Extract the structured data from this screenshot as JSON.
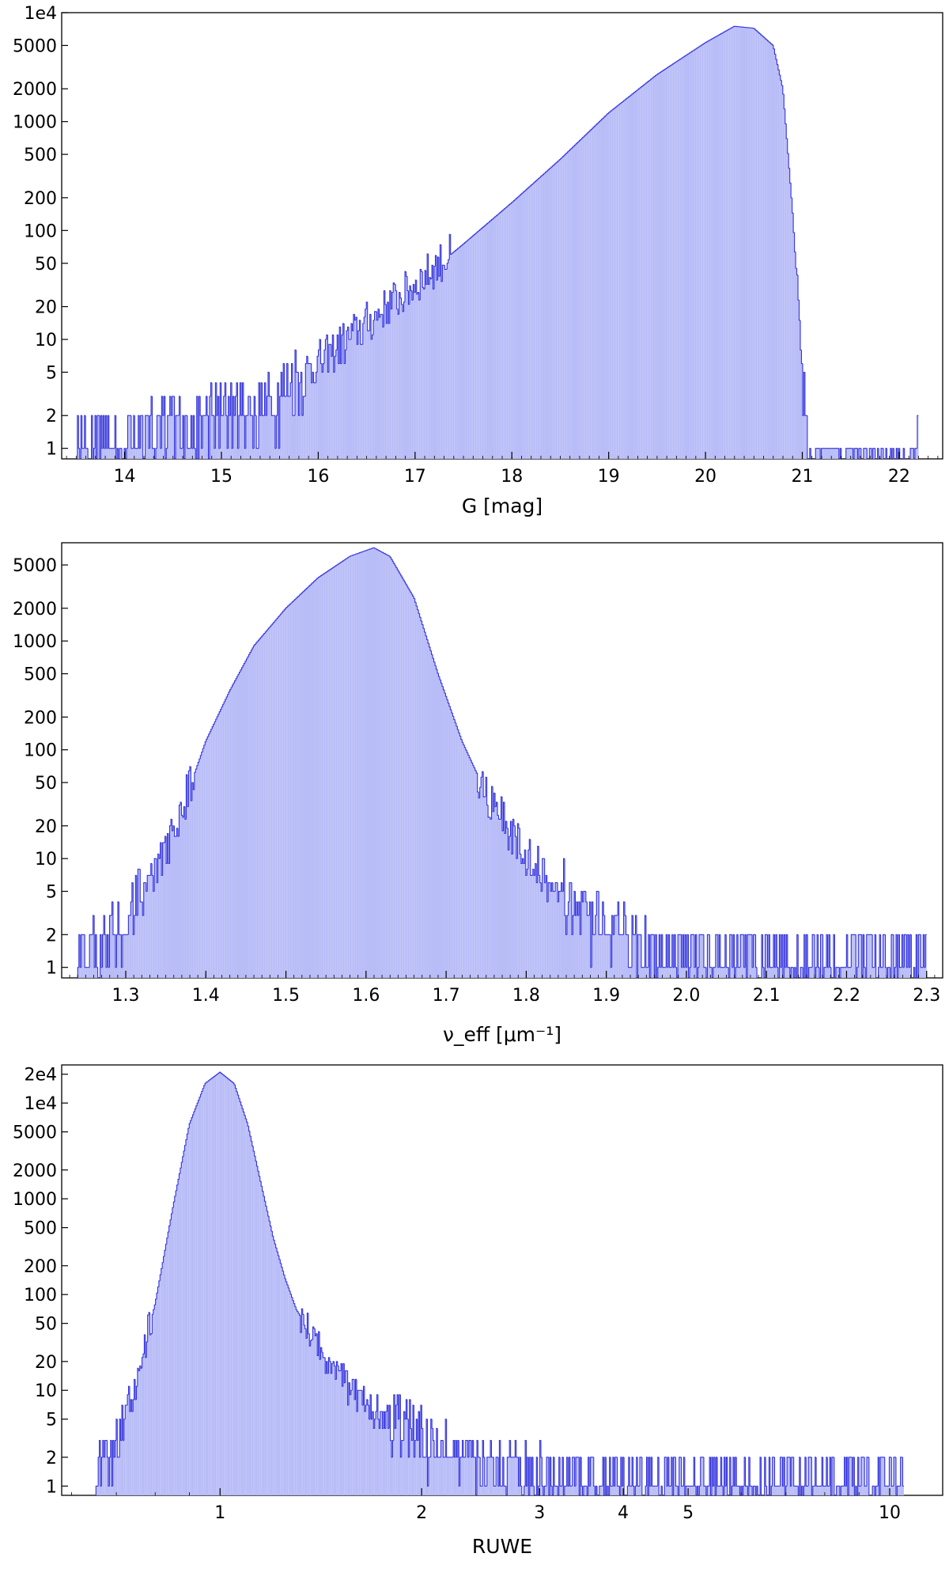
{
  "chart_data": [
    {
      "type": "histogram",
      "xlabel": "G [mag]",
      "ylabel": "",
      "xscale": "linear",
      "yscale": "log",
      "xlim": [
        13.35,
        22.45
      ],
      "ylim": [
        0.8,
        10000
      ],
      "xticks": [
        14,
        15,
        16,
        17,
        18,
        19,
        20,
        21,
        22
      ],
      "xtick_labels": [
        "14",
        "15",
        "16",
        "17",
        "18",
        "19",
        "20",
        "21",
        "22"
      ],
      "yticks": [
        1,
        2,
        5,
        10,
        20,
        50,
        100,
        200,
        500,
        1000,
        2000,
        5000,
        10000
      ],
      "ytick_labels": [
        "1",
        "2",
        "5",
        "10",
        "20",
        "50",
        "100",
        "200",
        "500",
        "1000",
        "2000",
        "5000",
        "1e4"
      ],
      "grid": false,
      "fill_color": "#b8bcf7",
      "edge_color": "#3333dd",
      "x": [
        13.5,
        14.0,
        14.5,
        15.0,
        15.5,
        15.7,
        16.0,
        16.5,
        17.0,
        17.5,
        18.0,
        18.5,
        19.0,
        19.5,
        20.0,
        20.3,
        20.5,
        20.7,
        20.8,
        20.9,
        21.0,
        21.05,
        21.1,
        22.2
      ],
      "y": [
        1,
        1,
        1.5,
        2,
        2.5,
        4,
        6,
        14,
        32,
        75,
        180,
        450,
        1200,
        2700,
        5300,
        7500,
        7200,
        5000,
        2000,
        150,
        5,
        1,
        0,
        1
      ]
    },
    {
      "type": "histogram",
      "xlabel": "ν_eff [μm⁻¹]",
      "ylabel": "",
      "xscale": "linear",
      "yscale": "log",
      "xlim": [
        1.22,
        2.32
      ],
      "ylim": [
        0.8,
        8000
      ],
      "xticks": [
        1.3,
        1.4,
        1.5,
        1.6,
        1.7,
        1.8,
        1.9,
        2.0,
        2.1,
        2.2,
        2.3
      ],
      "xtick_labels": [
        "1.3",
        "1.4",
        "1.5",
        "1.6",
        "1.7",
        "1.8",
        "1.9",
        "2.0",
        "2.1",
        "2.2",
        "2.3"
      ],
      "yticks": [
        1,
        2,
        5,
        10,
        20,
        50,
        100,
        200,
        500,
        1000,
        2000,
        5000
      ],
      "ytick_labels": [
        "1",
        "2",
        "5",
        "10",
        "20",
        "50",
        "100",
        "200",
        "500",
        "1000",
        "2000",
        "5000"
      ],
      "grid": false,
      "fill_color": "#b8bcf7",
      "edge_color": "#3333dd",
      "x": [
        1.24,
        1.26,
        1.29,
        1.32,
        1.35,
        1.38,
        1.4,
        1.43,
        1.46,
        1.5,
        1.54,
        1.58,
        1.61,
        1.63,
        1.66,
        1.69,
        1.72,
        1.75,
        1.79,
        1.83,
        1.87,
        1.92,
        1.97,
        2.03,
        2.1,
        2.3
      ],
      "y": [
        1,
        1.5,
        2,
        4,
        12,
        45,
        120,
        350,
        900,
        2000,
        3800,
        6000,
        7200,
        6000,
        2500,
        500,
        120,
        40,
        14,
        6,
        3,
        1.8,
        1.2,
        1,
        1,
        1
      ]
    },
    {
      "type": "histogram",
      "xlabel": "RUWE",
      "ylabel": "",
      "xscale": "log",
      "yscale": "log",
      "xlim": [
        0.58,
        12.0
      ],
      "ylim": [
        0.8,
        25000
      ],
      "xticks": [
        1,
        2,
        3,
        4,
        5,
        10
      ],
      "xtick_labels": [
        "1",
        "2",
        "3",
        "4",
        "5",
        "10"
      ],
      "yticks": [
        1,
        2,
        5,
        10,
        20,
        50,
        100,
        200,
        500,
        1000,
        2000,
        5000,
        10000,
        20000
      ],
      "ytick_labels": [
        "1",
        "2",
        "5",
        "10",
        "20",
        "50",
        "100",
        "200",
        "500",
        "1000",
        "2000",
        "5000",
        "1e4",
        "2e4"
      ],
      "grid": false,
      "fill_color": "#b8bcf7",
      "edge_color": "#3333dd",
      "x": [
        0.65,
        0.7,
        0.75,
        0.8,
        0.85,
        0.9,
        0.95,
        1.0,
        1.05,
        1.1,
        1.15,
        1.2,
        1.25,
        1.3,
        1.4,
        1.5,
        1.6,
        1.8,
        2.0,
        2.3,
        2.6,
        3.0,
        3.2,
        4.0,
        5.0,
        7.0,
        10.5
      ],
      "y": [
        1,
        3,
        12,
        80,
        800,
        6000,
        16000,
        21000,
        16000,
        6000,
        1500,
        400,
        150,
        70,
        30,
        15,
        9,
        5,
        3,
        2,
        1.5,
        1.2,
        1,
        1,
        1,
        1,
        1
      ]
    }
  ]
}
